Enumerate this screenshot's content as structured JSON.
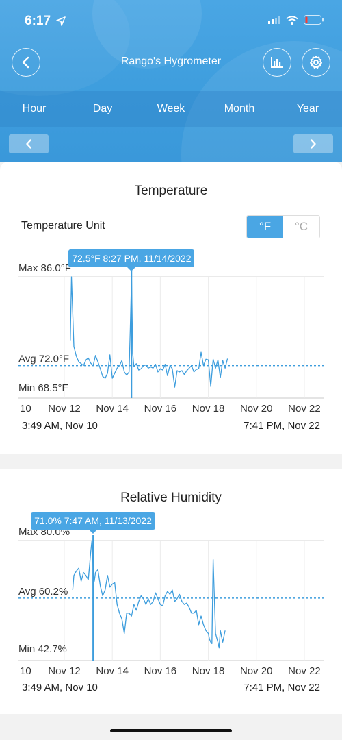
{
  "status": {
    "time": "6:17"
  },
  "header": {
    "title": "Rango's Hygrometer"
  },
  "tabs": [
    {
      "label": "Hour"
    },
    {
      "label": "Day"
    },
    {
      "label": "Week"
    },
    {
      "label": "Month"
    },
    {
      "label": "Year"
    }
  ],
  "temperature": {
    "title": "Temperature",
    "unit_label": "Temperature Unit",
    "unit_f": "°F",
    "unit_c": "°C",
    "selected_unit": "F",
    "max_label": "Max 86.0°F",
    "avg_label": "Avg 72.0°F",
    "min_label": "Min 68.5°F",
    "tooltip": "72.5°F  8:27 PM,  11/14/2022",
    "range_start": "3:49 AM,  Nov 10",
    "range_end": "7:41 PM,  Nov 22"
  },
  "humidity": {
    "title": "Relative Humidity",
    "max_label": "Max 80.0%",
    "avg_label": "Avg 60.2%",
    "min_label": "Min 42.7%",
    "tooltip": "71.0%  7:47 AM,  11/13/2022",
    "range_start": "3:49 AM,  Nov 10",
    "range_end": "7:41 PM,  Nov 22"
  },
  "chart_data": [
    {
      "type": "line",
      "title": "Temperature",
      "xticks": [
        "10",
        "Nov 12",
        "Nov 14",
        "Nov 16",
        "Nov 18",
        "Nov 20",
        "Nov 22"
      ],
      "xlim": [
        10,
        22.8
      ],
      "ylim": [
        68.5,
        86.0
      ],
      "avg": 72.0,
      "cursor_x": 14.8,
      "series": [
        {
          "x": [
            12.25,
            12.3,
            12.4,
            12.5,
            12.6,
            12.7,
            12.8,
            12.9,
            13.0,
            13.1,
            13.2,
            13.3,
            13.4,
            13.5,
            13.6,
            13.7,
            13.8,
            13.9,
            14.0,
            14.1,
            14.2,
            14.3,
            14.4,
            14.5,
            14.6,
            14.7,
            14.75,
            14.8,
            14.85,
            14.9,
            15.0,
            15.1,
            15.2,
            15.3,
            15.4,
            15.5,
            15.6,
            15.7,
            15.8,
            15.9,
            16.0,
            16.1,
            16.2,
            16.3,
            16.4,
            16.5,
            16.6,
            16.7,
            16.8,
            16.9,
            17.0,
            17.1,
            17.2,
            17.3,
            17.4,
            17.5,
            17.6,
            17.7,
            17.8,
            17.9,
            18.0,
            18.1,
            18.2,
            18.3,
            18.4,
            18.5,
            18.6,
            18.7,
            18.8
          ],
          "y": [
            76.0,
            86.0,
            75.0,
            73.5,
            72.6,
            72.3,
            72.0,
            72.9,
            73.2,
            72.4,
            72.0,
            73.6,
            72.6,
            71.5,
            70.3,
            70.0,
            70.8,
            73.7,
            70.0,
            70.8,
            71.6,
            72.0,
            72.8,
            71.0,
            70.5,
            71.0,
            78.0,
            86.0,
            74.0,
            71.8,
            72.3,
            71.3,
            71.5,
            72.0,
            72.1,
            71.6,
            71.8,
            71.6,
            72.2,
            71.0,
            71.5,
            71.3,
            72.2,
            70.4,
            72.0,
            71.5,
            68.6,
            71.2,
            71.0,
            71.2,
            70.6,
            71.2,
            71.6,
            72.0,
            71.0,
            71.4,
            71.5,
            74.1,
            72.0,
            73.0,
            72.9,
            68.7,
            73.0,
            71.6,
            72.9,
            70.1,
            72.8,
            71.6,
            73.1
          ]
        }
      ]
    },
    {
      "type": "line",
      "title": "Relative Humidity",
      "xticks": [
        "10",
        "Nov 12",
        "Nov 14",
        "Nov 16",
        "Nov 18",
        "Nov 20",
        "Nov 22"
      ],
      "xlim": [
        10,
        22.8
      ],
      "ylim": [
        42.7,
        80.0
      ],
      "avg": 60.2,
      "cursor_x": 13.2,
      "series": [
        {
          "x": [
            12.35,
            12.4,
            12.5,
            12.6,
            12.7,
            12.8,
            12.9,
            13.0,
            13.05,
            13.1,
            13.15,
            13.2,
            13.25,
            13.3,
            13.4,
            13.5,
            13.6,
            13.7,
            13.8,
            13.9,
            14.0,
            14.1,
            14.2,
            14.3,
            14.4,
            14.5,
            14.6,
            14.7,
            14.8,
            14.9,
            15.0,
            15.1,
            15.2,
            15.3,
            15.4,
            15.5,
            15.6,
            15.7,
            15.8,
            15.9,
            16.0,
            16.1,
            16.2,
            16.3,
            16.4,
            16.5,
            16.6,
            16.7,
            16.8,
            16.9,
            17.0,
            17.1,
            17.2,
            17.3,
            17.4,
            17.5,
            17.6,
            17.7,
            17.8,
            17.9,
            18.0,
            18.05,
            18.1,
            18.15,
            18.2,
            18.3,
            18.4,
            18.45,
            18.5,
            18.6,
            18.7
          ],
          "y": [
            63.0,
            68.0,
            69.5,
            70.5,
            66.0,
            69.0,
            68.0,
            66.5,
            71.0,
            76.0,
            80.0,
            71.0,
            66.0,
            69.0,
            70.0,
            64.5,
            61.0,
            63.0,
            68.0,
            64.0,
            65.0,
            65.5,
            58.0,
            55.0,
            53.0,
            48.0,
            55.0,
            55.0,
            54.0,
            58.0,
            56.0,
            59.0,
            61.0,
            60.0,
            58.0,
            60.0,
            58.0,
            59.0,
            62.0,
            60.0,
            58.0,
            57.5,
            61.0,
            62.5,
            61.5,
            63.0,
            59.0,
            60.0,
            61.5,
            59.0,
            58.0,
            58.5,
            57.0,
            55.0,
            55.0,
            56.0,
            51.0,
            54.0,
            51.0,
            49.0,
            48.0,
            46.0,
            45.0,
            44.5,
            73.5,
            48.0,
            45.0,
            43.0,
            49.0,
            45.0,
            49.0
          ]
        }
      ]
    }
  ]
}
